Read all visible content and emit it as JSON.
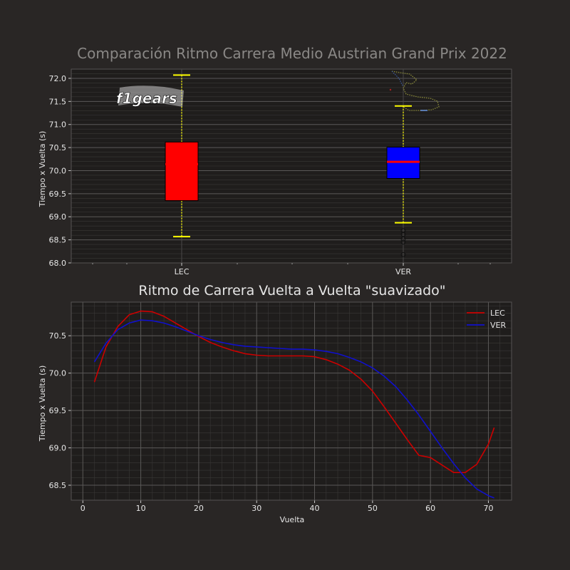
{
  "chart_data": [
    {
      "type": "box",
      "title": "Comparación Ritmo Carrera Medio Austrian Grand Prix 2022",
      "xlabel": "",
      "ylabel": "Tiempo x Vuelta (s)",
      "ylim": [
        68.0,
        72.2
      ],
      "yticks": [
        68.0,
        68.5,
        69.0,
        69.5,
        70.0,
        70.5,
        71.0,
        71.5,
        72.0
      ],
      "ytick_labels": [
        "68.0",
        "68.5",
        "69.0",
        "69.5",
        "70.0",
        "70.5",
        "71.0",
        "71.5",
        "72.0"
      ],
      "grid": true,
      "categories": [
        "LEC",
        "VER"
      ],
      "boxes": [
        {
          "name": "LEC",
          "color": "#ff0000",
          "whisker_low": 68.57,
          "q1": 69.35,
          "median": 70.14,
          "q3": 70.62,
          "whisker_high": 72.07,
          "outliers": []
        },
        {
          "name": "VER",
          "color": "#0000ff",
          "whisker_low": 68.87,
          "q1": 69.83,
          "median": 70.19,
          "q3": 70.51,
          "whisker_high": 71.4,
          "outliers": [
            68.7,
            68.62,
            68.52,
            68.45,
            68.18
          ]
        }
      ],
      "median_color": "#ff0000",
      "whisker_color": "#ffff00",
      "logo_text": "f1gears"
    },
    {
      "type": "line",
      "title": "Ritmo de Carrera Vuelta a Vuelta \"suavizado\"",
      "xlabel": "Vuelta",
      "ylabel": "Tiempo x Vuelta (s)",
      "xlim": [
        -2,
        74
      ],
      "ylim": [
        68.3,
        70.95
      ],
      "xticks": [
        0,
        10,
        20,
        30,
        40,
        50,
        60,
        70
      ],
      "xtick_labels": [
        "0",
        "10",
        "20",
        "30",
        "40",
        "50",
        "60",
        "70"
      ],
      "yticks": [
        68.5,
        69.0,
        69.5,
        70.0,
        70.5
      ],
      "ytick_labels": [
        "68.5",
        "69.0",
        "69.5",
        "70.0",
        "70.5"
      ],
      "grid": true,
      "legend_position": "top-right",
      "series": [
        {
          "name": "LEC",
          "color": "#cc0000",
          "x": [
            2,
            4,
            6,
            8,
            10,
            12,
            14,
            16,
            18,
            20,
            22,
            24,
            26,
            28,
            30,
            32,
            34,
            36,
            38,
            40,
            42,
            44,
            46,
            48,
            50,
            52,
            54,
            56,
            58,
            60,
            62,
            64,
            66,
            68,
            70,
            71
          ],
          "y": [
            69.88,
            70.35,
            70.62,
            70.78,
            70.83,
            70.82,
            70.76,
            70.67,
            70.58,
            70.49,
            70.41,
            70.35,
            70.3,
            70.26,
            70.24,
            70.23,
            70.23,
            70.23,
            70.23,
            70.22,
            70.18,
            70.12,
            70.04,
            69.92,
            69.76,
            69.55,
            69.33,
            69.11,
            68.9,
            68.87,
            68.77,
            68.67,
            68.67,
            68.78,
            69.05,
            69.27
          ]
        },
        {
          "name": "VER",
          "color": "#1010cc",
          "x": [
            2,
            4,
            6,
            8,
            10,
            12,
            14,
            16,
            18,
            20,
            22,
            24,
            26,
            28,
            30,
            32,
            34,
            36,
            38,
            40,
            42,
            44,
            46,
            48,
            50,
            52,
            54,
            56,
            58,
            60,
            62,
            64,
            66,
            68,
            70,
            71
          ],
          "y": [
            70.15,
            70.4,
            70.58,
            70.67,
            70.71,
            70.7,
            70.67,
            70.62,
            70.56,
            70.5,
            70.45,
            70.41,
            70.38,
            70.36,
            70.35,
            70.34,
            70.33,
            70.32,
            70.32,
            70.31,
            70.29,
            70.26,
            70.21,
            70.15,
            70.07,
            69.96,
            69.82,
            69.64,
            69.44,
            69.22,
            69.0,
            68.79,
            68.6,
            68.45,
            68.36,
            68.33
          ]
        }
      ]
    }
  ]
}
